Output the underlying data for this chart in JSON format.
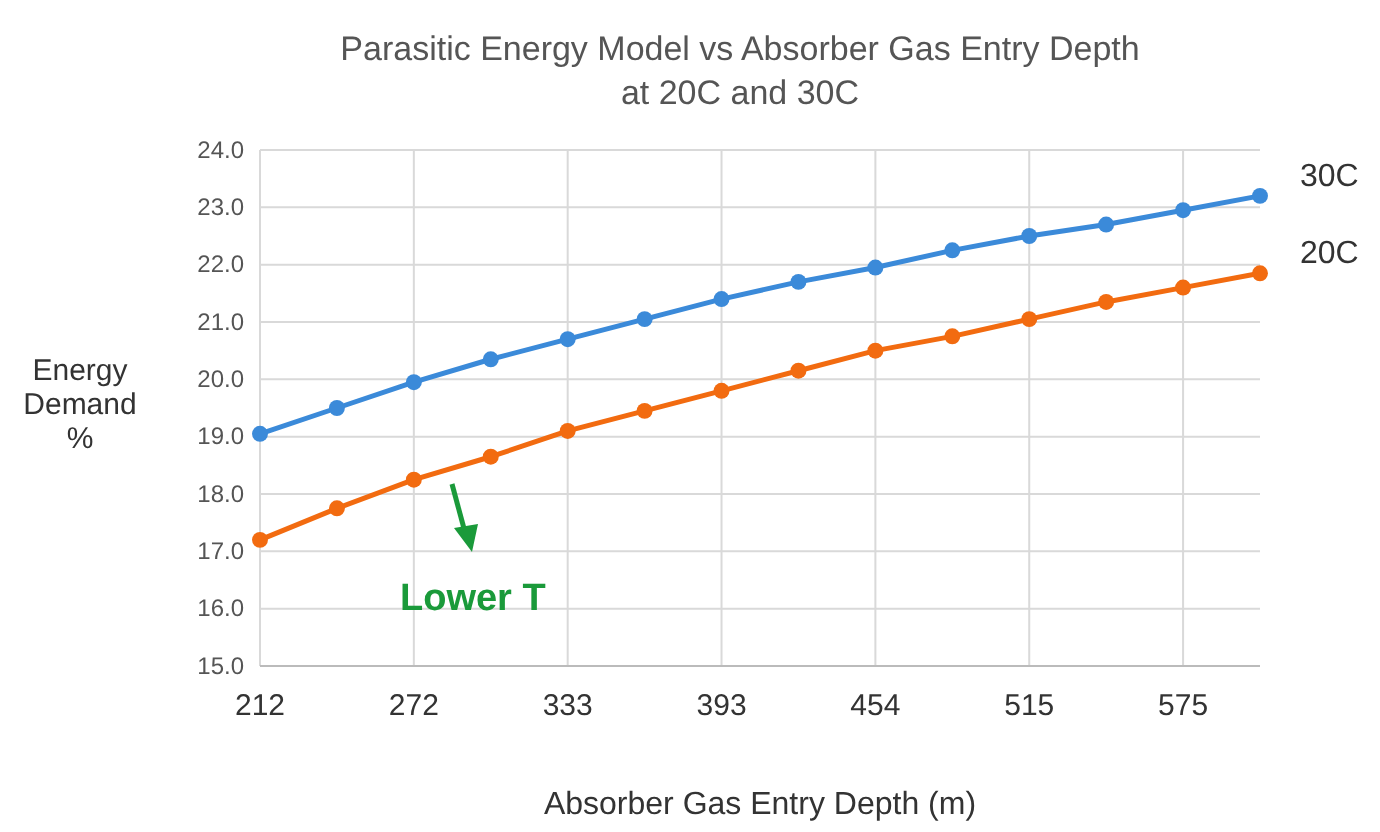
{
  "chart_data": {
    "type": "line",
    "title": "Parasitic Energy Model vs Absorber Gas Entry Depth at 20C and 30C",
    "xlabel": "Absorber Gas Entry Depth (m)",
    "ylabel": "Energy\nDemand\n%",
    "categories": [
      "212",
      null,
      "272",
      null,
      "333",
      null,
      "393",
      null,
      "454",
      null,
      "515",
      null,
      "575",
      null
    ],
    "series": [
      {
        "name": "30C",
        "color": "#3b8ad9",
        "values": [
          19.05,
          19.5,
          19.95,
          20.35,
          20.7,
          21.05,
          21.4,
          21.7,
          21.95,
          22.25,
          22.5,
          22.7,
          22.95,
          23.2
        ]
      },
      {
        "name": "20C",
        "color": "#f26b10",
        "values": [
          17.2,
          17.75,
          18.25,
          18.65,
          19.1,
          19.45,
          19.8,
          20.15,
          20.5,
          20.75,
          21.05,
          21.35,
          21.6,
          21.85
        ]
      }
    ],
    "ylim": [
      15,
      24
    ],
    "yticks": [
      {
        "value": 15,
        "label": "15.0"
      },
      {
        "value": 16,
        "label": "16.0"
      },
      {
        "value": 17,
        "label": "17.0"
      },
      {
        "value": 18,
        "label": "18.0"
      },
      {
        "value": 19,
        "label": "19.0"
      },
      {
        "value": 20,
        "label": "20.0"
      },
      {
        "value": 21,
        "label": "21.0"
      },
      {
        "value": 22,
        "label": "22.0"
      },
      {
        "value": 23,
        "label": "23.0"
      },
      {
        "value": 24,
        "label": "24.0"
      }
    ],
    "grid": true,
    "legend": false,
    "marker": "circle",
    "line_style": "solid",
    "annotations": [
      "Lower T"
    ]
  }
}
